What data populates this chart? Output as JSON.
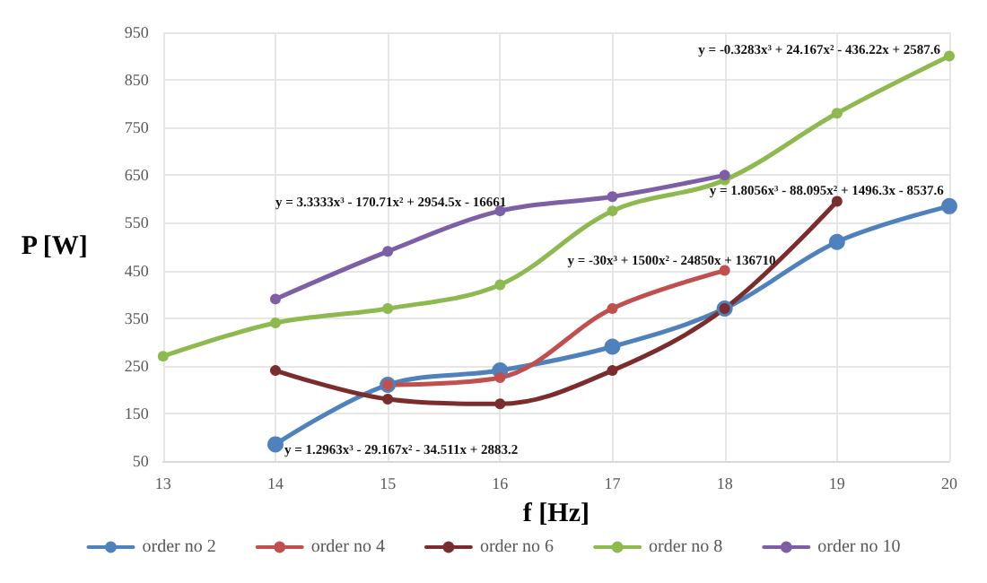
{
  "chart_data": {
    "type": "line",
    "xlabel": "f [Hz]",
    "ylabel": "P [W]",
    "xlim": [
      13,
      20
    ],
    "xticks": [
      13,
      14,
      15,
      16,
      17,
      18,
      19,
      20
    ],
    "ylim": [
      50,
      950
    ],
    "yticks": [
      50,
      150,
      250,
      350,
      450,
      550,
      650,
      750,
      850,
      950
    ],
    "grid": true,
    "legend": "bottom",
    "marker": "circle",
    "line_style": "solid",
    "series": [
      {
        "name": "order no 2",
        "color": "#4f81bd",
        "x": [
          14,
          15,
          16,
          17,
          18,
          19,
          20
        ],
        "values": [
          85,
          210,
          240,
          290,
          370,
          510,
          585
        ]
      },
      {
        "name": "order no 4",
        "color": "#c0504d",
        "x": [
          15,
          16,
          17,
          18
        ],
        "values": [
          210,
          225,
          370,
          450
        ]
      },
      {
        "name": "order no 6",
        "color": "#7b2c2c",
        "x": [
          14,
          15,
          16,
          17,
          18,
          19
        ],
        "values": [
          240,
          180,
          170,
          240,
          370,
          595
        ]
      },
      {
        "name": "order no 8",
        "color": "#8db94f",
        "x": [
          13,
          14,
          15,
          16,
          17,
          18,
          19,
          20
        ],
        "values": [
          270,
          340,
          370,
          420,
          575,
          640,
          780,
          900
        ]
      },
      {
        "name": "order no 10",
        "color": "#7d5fa6",
        "x": [
          14,
          15,
          16,
          17,
          18
        ],
        "values": [
          390,
          490,
          575,
          605,
          650
        ]
      }
    ],
    "annotations": [
      "y = 1.2963x³ - 29.167x² - 34.511x + 2883.2",
      "y = 3.3333x³ - 170.71x² + 2954.5x - 16661",
      "y = -30x³ + 1500x² - 24850x + 136710",
      "y = 1.8056x³ - 88.095x² + 1496.3x - 8537.6",
      "y = -0.3283x³ + 24.167x² - 436.22x + 2587.6"
    ]
  }
}
